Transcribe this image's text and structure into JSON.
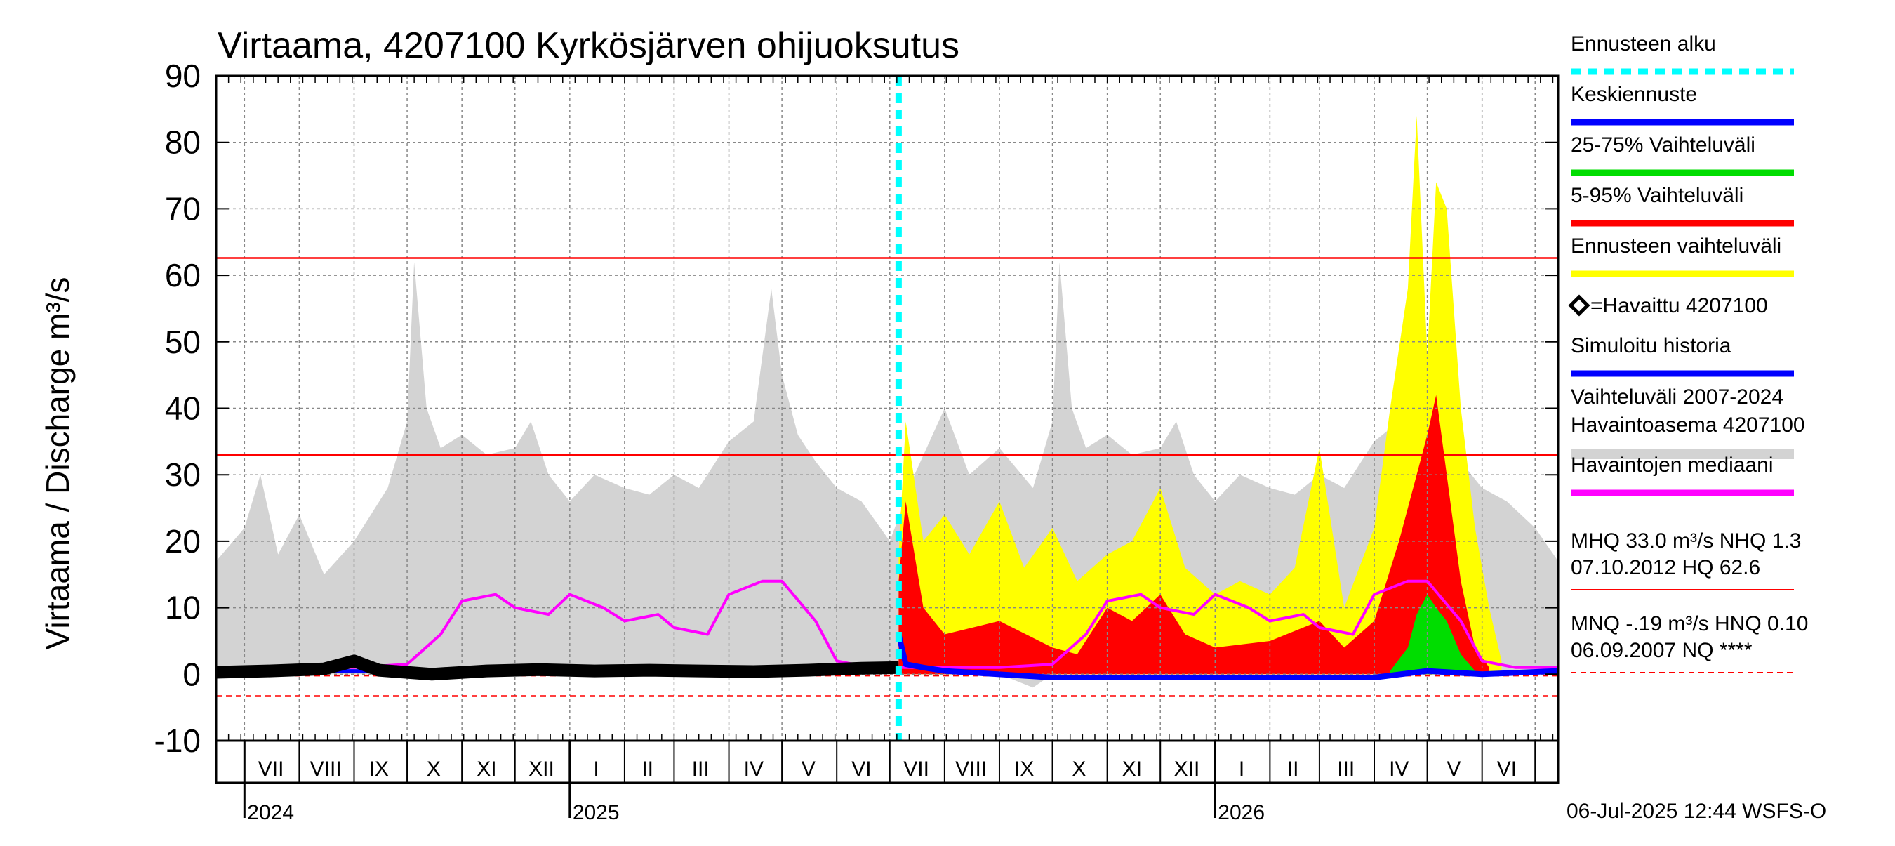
{
  "chart_data": {
    "type": "area",
    "title": "Virtaama, 4207100 Kyrkösjärven ohijuoksutus",
    "ylabel": "Virtaama / Discharge    m³/s",
    "ylim": [
      -10,
      90
    ],
    "yticks": [
      -10,
      0,
      10,
      20,
      30,
      40,
      50,
      60,
      70,
      80,
      90
    ],
    "xlim": [
      "2024-06-15",
      "2026-07-14"
    ],
    "forecast_start": "2025-07-06",
    "month_labels": [
      {
        "label": "VII",
        "date": "2024-07-16"
      },
      {
        "label": "VIII",
        "date": "2024-08-16"
      },
      {
        "label": "IX",
        "date": "2024-09-15"
      },
      {
        "label": "X",
        "date": "2024-10-16"
      },
      {
        "label": "XI",
        "date": "2024-11-15"
      },
      {
        "label": "XII",
        "date": "2024-12-16"
      },
      {
        "label": "I",
        "date": "2025-01-16"
      },
      {
        "label": "II",
        "date": "2025-02-14"
      },
      {
        "label": "III",
        "date": "2025-03-16"
      },
      {
        "label": "IV",
        "date": "2025-04-15"
      },
      {
        "label": "V",
        "date": "2025-05-16"
      },
      {
        "label": "VI",
        "date": "2025-06-15"
      },
      {
        "label": "VII",
        "date": "2025-07-16"
      },
      {
        "label": "VIII",
        "date": "2025-08-16"
      },
      {
        "label": "IX",
        "date": "2025-09-15"
      },
      {
        "label": "X",
        "date": "2025-10-16"
      },
      {
        "label": "XI",
        "date": "2025-11-15"
      },
      {
        "label": "XII",
        "date": "2025-12-16"
      },
      {
        "label": "I",
        "date": "2026-01-16"
      },
      {
        "label": "II",
        "date": "2026-02-14"
      },
      {
        "label": "III",
        "date": "2026-03-16"
      },
      {
        "label": "IV",
        "date": "2026-04-15"
      },
      {
        "label": "V",
        "date": "2026-05-16"
      },
      {
        "label": "VI",
        "date": "2026-06-15"
      }
    ],
    "year_labels": [
      {
        "label": "2024",
        "date": "2024-07-01"
      },
      {
        "label": "2025",
        "date": "2025-01-01"
      },
      {
        "label": "2026",
        "date": "2026-01-01"
      }
    ],
    "reference_lines": [
      {
        "name": "HQ",
        "value": 62.6,
        "color": "#ff0000",
        "style": "solid"
      },
      {
        "name": "MHQ",
        "value": 33.0,
        "color": "#ff0000",
        "style": "solid"
      },
      {
        "name": "MNQ",
        "value": -0.19,
        "color": "#ff0000",
        "style": "dashed"
      },
      {
        "name": "NQ",
        "value": -3.3,
        "color": "#ff0000",
        "style": "dashed"
      }
    ],
    "series": [
      {
        "name": "Vaihteluväli 2007-2024 Havaintoasema 4207100",
        "kind": "band",
        "color": "#d3d3d3",
        "x": [
          "2024-06-15",
          "2024-07-01",
          "2024-07-10",
          "2024-07-20",
          "2024-08-01",
          "2024-08-15",
          "2024-09-01",
          "2024-09-20",
          "2024-10-01",
          "2024-10-05",
          "2024-10-12",
          "2024-10-20",
          "2024-11-01",
          "2024-11-15",
          "2024-12-01",
          "2024-12-10",
          "2024-12-20",
          "2025-01-01",
          "2025-01-15",
          "2025-02-01",
          "2025-02-15",
          "2025-03-01",
          "2025-03-15",
          "2025-04-01",
          "2025-04-15",
          "2025-04-25",
          "2025-05-01",
          "2025-05-10",
          "2025-05-20",
          "2025-06-01",
          "2025-06-15",
          "2025-07-01",
          "2025-07-15",
          "2025-08-01",
          "2025-08-15",
          "2025-09-01",
          "2025-09-20",
          "2025-10-01",
          "2025-10-05",
          "2025-10-12",
          "2025-10-20",
          "2025-11-01",
          "2025-11-15",
          "2025-12-01",
          "2025-12-10",
          "2025-12-20",
          "2026-01-01",
          "2026-01-15",
          "2026-02-01",
          "2026-02-15",
          "2026-03-01",
          "2026-03-15",
          "2026-04-01",
          "2026-04-15",
          "2026-04-25",
          "2026-05-01",
          "2026-05-10",
          "2026-05-20",
          "2026-06-01",
          "2026-06-15",
          "2026-07-01",
          "2026-07-14"
        ],
        "upper": [
          17,
          22,
          30,
          18,
          24,
          15,
          20,
          28,
          38,
          62,
          40,
          34,
          36,
          33,
          34,
          38,
          30,
          26,
          30,
          28,
          27,
          30,
          28,
          35,
          38,
          58,
          45,
          36,
          32,
          28,
          26,
          20,
          30,
          40,
          30,
          34,
          28,
          38,
          62,
          40,
          34,
          36,
          33,
          34,
          38,
          30,
          26,
          30,
          28,
          27,
          30,
          28,
          35,
          38,
          58,
          45,
          36,
          32,
          28,
          26,
          22,
          17
        ],
        "lower": [
          0,
          0,
          0,
          0,
          0,
          0,
          0,
          0,
          0,
          0,
          0,
          0,
          0,
          0,
          0,
          0,
          0,
          0,
          0,
          0,
          0,
          0,
          0,
          0,
          0,
          0,
          0,
          0,
          0,
          0,
          0,
          0,
          0,
          0,
          0,
          0,
          -2,
          0,
          0,
          0,
          0,
          0,
          0,
          0,
          0,
          0,
          0,
          0,
          0,
          0,
          0,
          0,
          0,
          0,
          0,
          0,
          0,
          0,
          0,
          0,
          0,
          0
        ]
      },
      {
        "name": "Ennusteen vaihteluväli",
        "kind": "band",
        "color": "#ffff00",
        "x": [
          "2025-07-06",
          "2025-07-10",
          "2025-07-20",
          "2025-08-01",
          "2025-08-15",
          "2025-09-01",
          "2025-09-15",
          "2025-10-01",
          "2025-10-15",
          "2025-11-01",
          "2025-11-15",
          "2025-12-01",
          "2025-12-15",
          "2026-01-01",
          "2026-01-15",
          "2026-02-01",
          "2026-02-15",
          "2026-03-01",
          "2026-03-15",
          "2026-04-01",
          "2026-04-10",
          "2026-04-20",
          "2026-04-25",
          "2026-05-01",
          "2026-05-06",
          "2026-05-12",
          "2026-05-20",
          "2026-05-28",
          "2026-06-05",
          "2026-06-12"
        ],
        "upper": [
          18,
          38,
          20,
          24,
          18,
          26,
          16,
          22,
          14,
          18,
          20,
          28,
          16,
          12,
          14,
          12,
          16,
          34,
          10,
          22,
          40,
          58,
          84,
          48,
          74,
          70,
          40,
          22,
          10,
          2
        ],
        "lower": [
          0,
          0,
          0,
          0,
          0,
          0,
          0,
          0,
          0,
          0,
          0,
          0,
          0,
          0,
          0,
          0,
          0,
          0,
          0,
          0,
          0,
          0,
          0,
          0,
          0,
          0,
          0,
          0,
          0,
          0
        ]
      },
      {
        "name": "5-95% Vaihteluväli",
        "kind": "band",
        "color": "#ff0000",
        "x": [
          "2025-07-06",
          "2025-07-10",
          "2025-07-20",
          "2025-08-01",
          "2025-09-01",
          "2025-10-01",
          "2025-10-15",
          "2025-11-01",
          "2025-11-15",
          "2025-12-01",
          "2025-12-15",
          "2026-01-01",
          "2026-02-01",
          "2026-03-01",
          "2026-03-15",
          "2026-04-01",
          "2026-04-15",
          "2026-04-25",
          "2026-05-01",
          "2026-05-06",
          "2026-05-12",
          "2026-05-20",
          "2026-05-28",
          "2026-06-05"
        ],
        "upper": [
          14,
          26,
          10,
          6,
          8,
          4,
          3,
          10,
          8,
          12,
          6,
          4,
          5,
          8,
          4,
          8,
          20,
          30,
          36,
          42,
          30,
          14,
          4,
          1
        ],
        "lower": [
          0,
          0,
          0,
          0,
          0,
          0,
          0,
          0,
          0,
          0,
          0,
          0,
          0,
          0,
          0,
          0,
          0,
          0,
          0,
          0,
          0,
          0,
          0,
          0
        ]
      },
      {
        "name": "25-75% Vaihteluväli",
        "kind": "band",
        "color": "#00dd00",
        "x": [
          "2026-04-10",
          "2026-04-20",
          "2026-04-25",
          "2026-05-01",
          "2026-05-06",
          "2026-05-12",
          "2026-05-20",
          "2026-05-28"
        ],
        "upper": [
          0.5,
          4,
          9,
          12,
          10,
          8,
          3,
          0.5
        ],
        "lower": [
          0,
          0,
          0,
          0,
          0,
          0,
          0,
          0
        ]
      },
      {
        "name": "Havaintojen mediaani",
        "kind": "line",
        "color": "#ff00ff",
        "x": [
          "2024-06-15",
          "2024-07-01",
          "2024-08-01",
          "2024-09-01",
          "2024-10-01",
          "2024-10-20",
          "2024-11-01",
          "2024-11-20",
          "2024-12-01",
          "2024-12-20",
          "2025-01-01",
          "2025-01-20",
          "2025-02-01",
          "2025-02-20",
          "2025-03-01",
          "2025-03-20",
          "2025-04-01",
          "2025-04-20",
          "2025-05-01",
          "2025-05-20",
          "2025-06-01",
          "2025-06-20",
          "2025-07-06",
          "2025-08-01",
          "2025-09-01",
          "2025-10-01",
          "2025-10-20",
          "2025-11-01",
          "2025-11-20",
          "2025-12-01",
          "2025-12-20",
          "2026-01-01",
          "2026-01-20",
          "2026-02-01",
          "2026-02-20",
          "2026-03-01",
          "2026-03-20",
          "2026-04-01",
          "2026-04-20",
          "2026-05-01",
          "2026-05-20",
          "2026-06-01",
          "2026-06-20",
          "2026-07-14"
        ],
        "y": [
          1,
          1,
          1,
          1,
          1.5,
          6,
          11,
          12,
          10,
          9,
          12,
          10,
          8,
          9,
          7,
          6,
          12,
          14,
          14,
          8,
          2,
          1,
          1,
          1,
          1,
          1.5,
          6,
          11,
          12,
          10,
          9,
          12,
          10,
          8,
          9,
          7,
          6,
          12,
          14,
          14,
          8,
          2,
          1,
          1
        ]
      },
      {
        "name": "Simuloitu historia",
        "kind": "line",
        "color": "#0000ff",
        "x": [
          "2024-06-15",
          "2025-07-06"
        ],
        "y": [
          0.5,
          0.5
        ]
      },
      {
        "name": "Havaittu 4207100",
        "kind": "line",
        "color": "#000000",
        "x": [
          "2024-06-15",
          "2024-07-15",
          "2024-08-15",
          "2024-09-01",
          "2024-09-15",
          "2024-10-15",
          "2024-11-15",
          "2024-12-15",
          "2025-01-15",
          "2025-02-15",
          "2025-03-15",
          "2025-04-15",
          "2025-05-15",
          "2025-06-15",
          "2025-07-06"
        ],
        "y": [
          0.3,
          0.5,
          0.8,
          2,
          0.6,
          0,
          0.5,
          0.7,
          0.5,
          0.6,
          0.5,
          0.4,
          0.6,
          0.9,
          1.0
        ]
      },
      {
        "name": "Keskiennuste",
        "kind": "line",
        "color": "#0000ff",
        "x": [
          "2025-07-06",
          "2025-07-10",
          "2025-07-20",
          "2025-08-01",
          "2025-10-01",
          "2025-12-01",
          "2026-02-01",
          "2026-04-01",
          "2026-05-01",
          "2026-06-01",
          "2026-07-14"
        ],
        "y": [
          6,
          1.5,
          1,
          0.5,
          -0.5,
          -0.5,
          -0.5,
          -0.5,
          0.5,
          0,
          0.5
        ]
      }
    ],
    "legend": [
      {
        "label": "Ennusteen alku",
        "color": "#00ffff",
        "style": "dotted"
      },
      {
        "label": "Keskiennuste",
        "color": "#0000ff",
        "style": "solid"
      },
      {
        "label": "25-75% Vaihteluväli",
        "color": "#00dd00",
        "style": "solid"
      },
      {
        "label": "5-95% Vaihteluväli",
        "color": "#ff0000",
        "style": "solid"
      },
      {
        "label": "Ennusteen vaihteluväli",
        "color": "#ffff00",
        "style": "solid"
      },
      {
        "label": "=Havaittu 4207100",
        "color": "#000000",
        "style": "marker"
      },
      {
        "label": "Simuloitu historia",
        "color": "#0000ff",
        "style": "solid"
      },
      {
        "label": "Vaihteluväli 2007-2024",
        "label2": " Havaintoasema 4207100",
        "color": "#d3d3d3",
        "style": "solid"
      },
      {
        "label": "Havaintojen mediaani",
        "color": "#ff00ff",
        "style": "solid"
      }
    ],
    "stats": {
      "line1": "MHQ 33.0 m³/s NHQ  1.3",
      "line2": "07.10.2012 HQ 62.6",
      "line3": "MNQ -.19 m³/s HNQ 0.10",
      "line4": "06.09.2007 NQ ****"
    },
    "footer": "06-Jul-2025 12:44 WSFS-O"
  }
}
